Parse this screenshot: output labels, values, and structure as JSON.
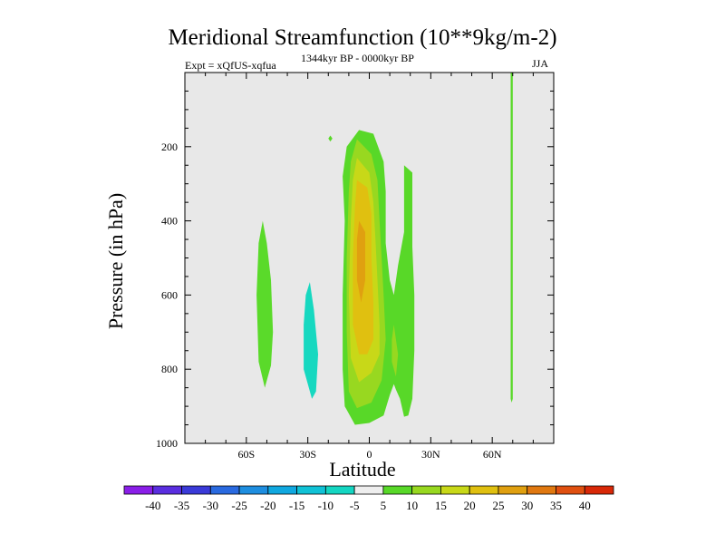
{
  "chart_data": {
    "type": "contour",
    "title": "Meridional Streamfunction (10**9kg/m-2)",
    "subtitle_left": "Expt = xQfUS-xqfua",
    "subtitle_center": "1344kyr BP - 0000kyr BP",
    "subtitle_right": "JJA",
    "xlabel": "Latitude",
    "ylabel": "Pressure (in hPa)",
    "xlim": [
      -90,
      90
    ],
    "ylim": [
      0,
      1000
    ],
    "y_inverted": true,
    "xticks": [
      {
        "value": -60,
        "label": "60S"
      },
      {
        "value": -30,
        "label": "30S"
      },
      {
        "value": 0,
        "label": "0"
      },
      {
        "value": 30,
        "label": "30N"
      },
      {
        "value": 60,
        "label": "60N"
      }
    ],
    "yticks": [
      200,
      400,
      600,
      800,
      1000
    ],
    "background_color": "#e8e8e8",
    "levels": [
      -40,
      -35,
      -30,
      -25,
      -20,
      -15,
      -10,
      -5,
      5,
      10,
      15,
      20,
      25,
      30,
      35,
      40
    ],
    "colorbar_colors": [
      "#8a1ee8",
      "#5a2ee0",
      "#3a3ad8",
      "#2a6ae0",
      "#1e8ee0",
      "#10a8e0",
      "#10c2d6",
      "#14d6c2",
      "#eeeeee",
      "#58d828",
      "#98d820",
      "#c8d818",
      "#e0c010",
      "#e0a010",
      "#e07810",
      "#e05010",
      "#d82808"
    ],
    "regions": [
      {
        "label": "neg-60S",
        "color": "#5ada2a",
        "points": [
          [
            -52,
            400
          ],
          [
            -50,
            460
          ],
          [
            -48,
            560
          ],
          [
            -47,
            700
          ],
          [
            -48,
            790
          ],
          [
            -51,
            850
          ],
          [
            -54,
            780
          ],
          [
            -55,
            600
          ],
          [
            -54,
            460
          ]
        ]
      },
      {
        "label": "neg-30S",
        "color": "#16d8c0",
        "points": [
          [
            -29,
            565
          ],
          [
            -27,
            640
          ],
          [
            -25,
            760
          ],
          [
            -26,
            860
          ],
          [
            -28,
            880
          ],
          [
            -32,
            800
          ],
          [
            -32,
            680
          ],
          [
            -31,
            600
          ]
        ]
      },
      {
        "label": "pos-21S",
        "color": "#58d828",
        "points": [
          [
            -19,
            170
          ],
          [
            -18,
            178
          ],
          [
            -19,
            186
          ],
          [
            -20,
            178
          ]
        ]
      },
      {
        "label": "pos-eq-green",
        "color": "#58d828",
        "points": [
          [
            -5,
            155
          ],
          [
            2,
            165
          ],
          [
            7,
            240
          ],
          [
            8,
            320
          ],
          [
            8,
            460
          ],
          [
            10,
            560
          ],
          [
            12,
            600
          ],
          [
            14,
            520
          ],
          [
            17,
            430
          ],
          [
            17,
            250
          ],
          [
            21,
            270
          ],
          [
            21,
            470
          ],
          [
            22,
            600
          ],
          [
            22,
            750
          ],
          [
            21,
            880
          ],
          [
            19,
            925
          ],
          [
            17,
            928
          ],
          [
            15,
            880
          ],
          [
            13,
            855
          ],
          [
            12,
            840
          ],
          [
            10,
            870
          ],
          [
            7,
            925
          ],
          [
            0,
            945
          ],
          [
            -7,
            950
          ],
          [
            -12,
            900
          ],
          [
            -13,
            800
          ],
          [
            -13,
            600
          ],
          [
            -12,
            400
          ],
          [
            -13,
            280
          ],
          [
            -11,
            200
          ]
        ]
      },
      {
        "label": "pos-eq-lime",
        "color": "#98d820",
        "points": [
          [
            -6,
            180
          ],
          [
            1,
            220
          ],
          [
            4,
            290
          ],
          [
            5,
            400
          ],
          [
            6,
            500
          ],
          [
            7,
            600
          ],
          [
            8,
            720
          ],
          [
            6,
            830
          ],
          [
            1,
            890
          ],
          [
            -6,
            905
          ],
          [
            -10,
            860
          ],
          [
            -11,
            700
          ],
          [
            -11,
            500
          ],
          [
            -10,
            320
          ],
          [
            -9,
            240
          ]
        ]
      },
      {
        "label": "pos-eq-yellow",
        "color": "#c8d818",
        "points": [
          [
            -6,
            230
          ],
          [
            0,
            270
          ],
          [
            2,
            350
          ],
          [
            3,
            450
          ],
          [
            4,
            560
          ],
          [
            5,
            680
          ],
          [
            5,
            760
          ],
          [
            1,
            810
          ],
          [
            -5,
            835
          ],
          [
            -9,
            770
          ],
          [
            -10,
            600
          ],
          [
            -9,
            400
          ],
          [
            -8,
            290
          ]
        ]
      },
      {
        "label": "pos-eq-gold",
        "color": "#e0c010",
        "points": [
          [
            -6,
            290
          ],
          [
            -1,
            310
          ],
          [
            1,
            380
          ],
          [
            1,
            500
          ],
          [
            2,
            620
          ],
          [
            2,
            720
          ],
          [
            -1,
            760
          ],
          [
            -5,
            760
          ],
          [
            -8,
            680
          ],
          [
            -8,
            500
          ],
          [
            -7,
            360
          ]
        ]
      },
      {
        "label": "pos-eq-orange",
        "color": "#e0a010",
        "points": [
          [
            -5,
            400
          ],
          [
            -2,
            430
          ],
          [
            -2,
            560
          ],
          [
            -4,
            620
          ],
          [
            -6,
            560
          ],
          [
            -6,
            450
          ]
        ]
      },
      {
        "label": "pos-15N-lime",
        "color": "#98d820",
        "points": [
          [
            12,
            680
          ],
          [
            14,
            760
          ],
          [
            13,
            820
          ],
          [
            11,
            780
          ],
          [
            11,
            720
          ]
        ]
      },
      {
        "label": "pos-70N",
        "color": "#58d828",
        "points": [
          [
            69,
            -20
          ],
          [
            70,
            -20
          ],
          [
            70,
            880
          ],
          [
            69.5,
            890
          ],
          [
            69,
            880
          ]
        ]
      }
    ]
  }
}
